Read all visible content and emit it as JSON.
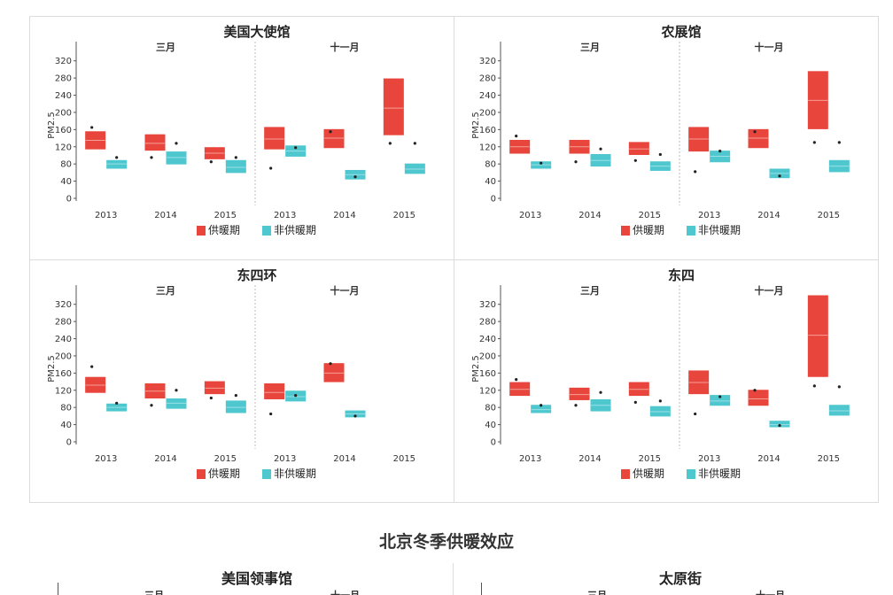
{
  "caption": "北京冬季供暖效应",
  "legend": {
    "heating": "供暖期",
    "non_heating": "非供暖期"
  },
  "colors": {
    "heating": "#e8453c",
    "non_heating": "#4fc7cf",
    "dot": "#222222",
    "axis": "#555555",
    "median": "#f4a098"
  },
  "chart_data": [
    {
      "type": "box",
      "title": "美国大使馆",
      "ylabel": "PM2.5",
      "ylim": [
        0,
        340
      ],
      "yticks": [
        0,
        40,
        80,
        120,
        160,
        200,
        240,
        280,
        320
      ],
      "facets": [
        "三月",
        "十一月"
      ],
      "categories": [
        "2013",
        "2014",
        "2015"
      ],
      "groups": [
        {
          "facet": "三月",
          "year": "2013",
          "heating": {
            "q1": 115,
            "median": 135,
            "q3": 155,
            "dot": 165
          },
          "non_heating": {
            "q1": 70,
            "median": 80,
            "q3": 88,
            "dot": 95
          }
        },
        {
          "facet": "三月",
          "year": "2014",
          "heating": {
            "q1": 112,
            "median": 128,
            "q3": 148,
            "dot": 95
          },
          "non_heating": {
            "q1": 80,
            "median": 95,
            "q3": 108,
            "dot": 128
          }
        },
        {
          "facet": "三月",
          "year": "2015",
          "heating": {
            "q1": 92,
            "median": 105,
            "q3": 118,
            "dot": 85
          },
          "non_heating": {
            "q1": 60,
            "median": 72,
            "q3": 88,
            "dot": 95
          }
        },
        {
          "facet": "十一月",
          "year": "2013",
          "heating": {
            "q1": 115,
            "median": 138,
            "q3": 165,
            "dot": 70
          },
          "non_heating": {
            "q1": 98,
            "median": 110,
            "q3": 122,
            "dot": 118
          }
        },
        {
          "facet": "十一月",
          "year": "2014",
          "heating": {
            "q1": 118,
            "median": 140,
            "q3": 160,
            "dot": 155
          },
          "non_heating": {
            "q1": 45,
            "median": 55,
            "q3": 65,
            "dot": 50
          }
        },
        {
          "facet": "十一月",
          "year": "2015",
          "heating": {
            "q1": 148,
            "median": 210,
            "q3": 278,
            "dot": 128
          },
          "non_heating": {
            "q1": 58,
            "median": 68,
            "q3": 80,
            "dot": 128
          }
        }
      ]
    },
    {
      "type": "box",
      "title": "农展馆",
      "ylabel": "PM2.5",
      "ylim": [
        0,
        340
      ],
      "yticks": [
        0,
        40,
        80,
        120,
        160,
        200,
        240,
        280,
        320
      ],
      "facets": [
        "三月",
        "十一月"
      ],
      "categories": [
        "2013",
        "2014",
        "2015"
      ],
      "groups": [
        {
          "facet": "三月",
          "year": "2013",
          "heating": {
            "q1": 105,
            "median": 120,
            "q3": 135,
            "dot": 145
          },
          "non_heating": {
            "q1": 70,
            "median": 78,
            "q3": 85,
            "dot": 82
          }
        },
        {
          "facet": "三月",
          "year": "2014",
          "heating": {
            "q1": 105,
            "median": 120,
            "q3": 135,
            "dot": 85
          },
          "non_heating": {
            "q1": 75,
            "median": 88,
            "q3": 102,
            "dot": 115
          }
        },
        {
          "facet": "三月",
          "year": "2015",
          "heating": {
            "q1": 102,
            "median": 115,
            "q3": 130,
            "dot": 88
          },
          "non_heating": {
            "q1": 65,
            "median": 75,
            "q3": 85,
            "dot": 102
          }
        },
        {
          "facet": "十一月",
          "year": "2013",
          "heating": {
            "q1": 110,
            "median": 138,
            "q3": 165,
            "dot": 62
          },
          "non_heating": {
            "q1": 85,
            "median": 98,
            "q3": 110,
            "dot": 110
          }
        },
        {
          "facet": "十一月",
          "year": "2014",
          "heating": {
            "q1": 118,
            "median": 140,
            "q3": 160,
            "dot": 155
          },
          "non_heating": {
            "q1": 48,
            "median": 58,
            "q3": 68,
            "dot": 52
          }
        },
        {
          "facet": "十一月",
          "year": "2015",
          "heating": {
            "q1": 162,
            "median": 228,
            "q3": 295,
            "dot": 130
          },
          "non_heating": {
            "q1": 62,
            "median": 75,
            "q3": 88,
            "dot": 130
          }
        }
      ]
    },
    {
      "type": "box",
      "title": "东四环",
      "ylabel": "PM2.5",
      "ylim": [
        0,
        340
      ],
      "yticks": [
        0,
        40,
        80,
        120,
        160,
        200,
        240,
        280,
        320
      ],
      "facets": [
        "三月",
        "十一月"
      ],
      "categories": [
        "2013",
        "2014",
        "2015"
      ],
      "groups": [
        {
          "facet": "三月",
          "year": "2013",
          "heating": {
            "q1": 115,
            "median": 132,
            "q3": 150,
            "dot": 175
          },
          "non_heating": {
            "q1": 72,
            "median": 80,
            "q3": 88,
            "dot": 90
          }
        },
        {
          "facet": "三月",
          "year": "2014",
          "heating": {
            "q1": 102,
            "median": 118,
            "q3": 135,
            "dot": 85
          },
          "non_heating": {
            "q1": 78,
            "median": 90,
            "q3": 100,
            "dot": 120
          }
        },
        {
          "facet": "三月",
          "year": "2015",
          "heating": {
            "q1": 112,
            "median": 125,
            "q3": 140,
            "dot": 102
          },
          "non_heating": {
            "q1": 68,
            "median": 80,
            "q3": 95,
            "dot": 108
          }
        },
        {
          "facet": "十一月",
          "year": "2013",
          "heating": {
            "q1": 100,
            "median": 115,
            "q3": 135,
            "dot": 65
          },
          "non_heating": {
            "q1": 95,
            "median": 105,
            "q3": 118,
            "dot": 108
          }
        },
        {
          "facet": "十一月",
          "year": "2014",
          "heating": {
            "q1": 140,
            "median": 160,
            "q3": 182,
            "dot": 182
          },
          "non_heating": {
            "q1": 58,
            "median": 65,
            "q3": 72,
            "dot": 60
          }
        }
      ]
    },
    {
      "type": "box",
      "title": "东四",
      "ylabel": "PM2.5",
      "ylim": [
        0,
        340
      ],
      "yticks": [
        0,
        40,
        80,
        120,
        160,
        200,
        240,
        280,
        320
      ],
      "facets": [
        "三月",
        "十一月"
      ],
      "categories": [
        "2013",
        "2014",
        "2015"
      ],
      "groups": [
        {
          "facet": "三月",
          "year": "2013",
          "heating": {
            "q1": 108,
            "median": 122,
            "q3": 138,
            "dot": 145
          },
          "non_heating": {
            "q1": 68,
            "median": 75,
            "q3": 85,
            "dot": 85
          }
        },
        {
          "facet": "三月",
          "year": "2014",
          "heating": {
            "q1": 98,
            "median": 110,
            "q3": 125,
            "dot": 85
          },
          "non_heating": {
            "q1": 72,
            "median": 85,
            "q3": 98,
            "dot": 115
          }
        },
        {
          "facet": "三月",
          "year": "2015",
          "heating": {
            "q1": 108,
            "median": 122,
            "q3": 138,
            "dot": 92
          },
          "non_heating": {
            "q1": 60,
            "median": 70,
            "q3": 82,
            "dot": 95
          }
        },
        {
          "facet": "十一月",
          "year": "2013",
          "heating": {
            "q1": 112,
            "median": 138,
            "q3": 165,
            "dot": 65
          },
          "non_heating": {
            "q1": 85,
            "median": 95,
            "q3": 108,
            "dot": 105
          }
        },
        {
          "facet": "十一月",
          "year": "2014",
          "heating": {
            "q1": 85,
            "median": 100,
            "q3": 120,
            "dot": 120
          },
          "non_heating": {
            "q1": 35,
            "median": 40,
            "q3": 48,
            "dot": 38
          }
        },
        {
          "facet": "十一月",
          "year": "2015",
          "heating": {
            "q1": 152,
            "median": 248,
            "q3": 345,
            "dot": 130
          },
          "non_heating": {
            "q1": 62,
            "median": 72,
            "q3": 85,
            "dot": 128
          }
        }
      ]
    }
  ],
  "partial_panels": [
    {
      "title": "美国领事馆",
      "facets": [
        "三月",
        "十一月"
      ]
    },
    {
      "title": "太原街",
      "facets": [
        "三月",
        "十一月"
      ]
    }
  ]
}
